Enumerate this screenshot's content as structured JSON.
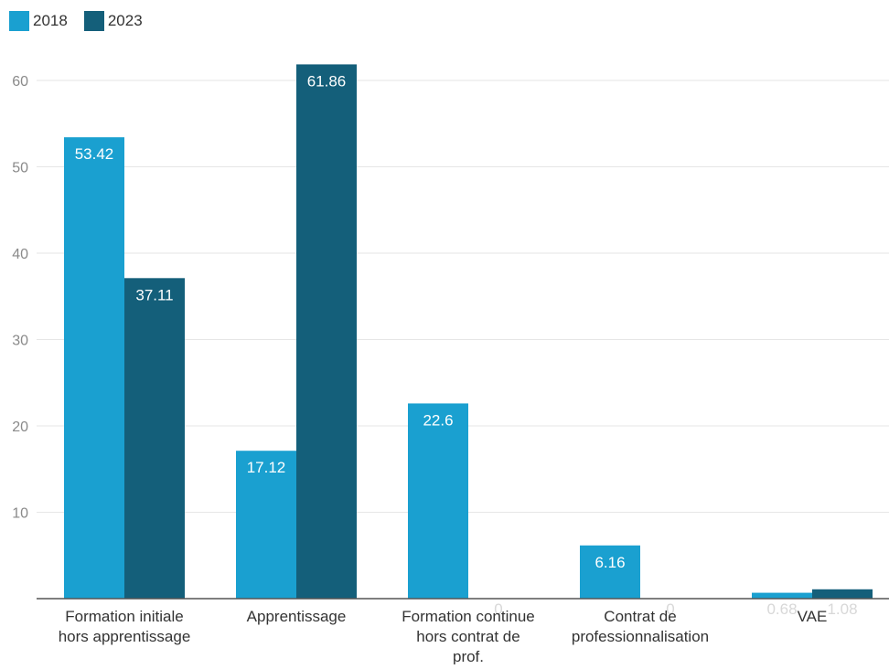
{
  "chart_data": {
    "type": "bar",
    "categories": [
      [
        "Formation initiale",
        "hors apprentissage"
      ],
      [
        "Apprentissage"
      ],
      [
        "Formation continue",
        "hors contrat de",
        "prof."
      ],
      [
        "Contrat de",
        "professionnalisation"
      ],
      [
        "VAE"
      ]
    ],
    "series": [
      {
        "name": "2018",
        "color": "#1aa0d0",
        "values": [
          53.42,
          17.12,
          22.6,
          6.16,
          0.68
        ]
      },
      {
        "name": "2023",
        "color": "#145f7a",
        "values": [
          37.11,
          61.86,
          0,
          0,
          1.08
        ]
      }
    ],
    "data_labels": [
      [
        "53.42",
        "17.12",
        "22.6",
        "6.16",
        "0.68"
      ],
      [
        "37.11",
        "61.86",
        "0",
        "0",
        "1.08"
      ]
    ],
    "yticks": [
      10,
      20,
      30,
      40,
      50,
      60
    ],
    "ylim": [
      0,
      63
    ],
    "grid": true,
    "legend_position": "top-left",
    "title": "",
    "xlabel": "",
    "ylabel": ""
  }
}
